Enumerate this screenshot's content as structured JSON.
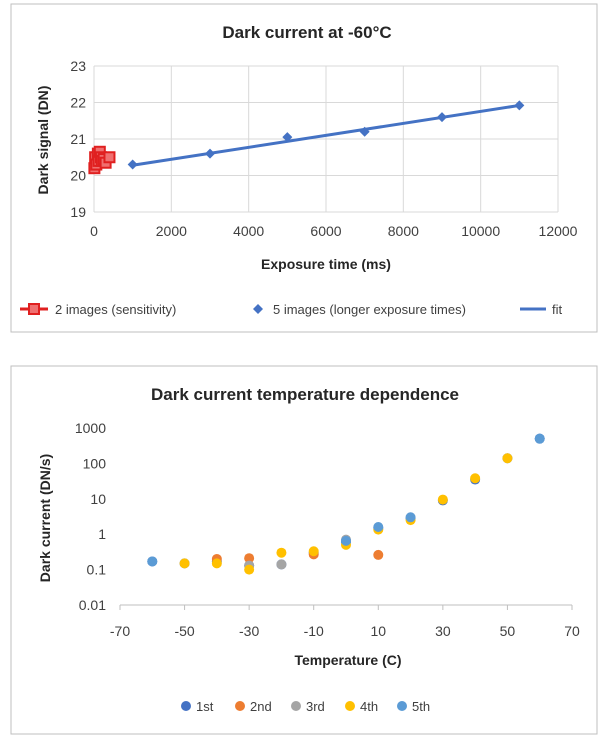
{
  "chart_data": [
    {
      "type": "scatter",
      "title": "Dark current at -60°C",
      "xlabel": "Exposure time (ms)",
      "ylabel": "Dark signal (DN)",
      "xlim": [
        0,
        12000
      ],
      "ylim": [
        19,
        23
      ],
      "x_ticks": [
        0,
        2000,
        4000,
        6000,
        8000,
        10000,
        12000
      ],
      "y_ticks": [
        19,
        20,
        21,
        22,
        23
      ],
      "grid": true,
      "legend_position": "bottom",
      "series": [
        {
          "name": "2 images (sensitivity)",
          "marker": "square",
          "color": "#e02020",
          "x": [
            10,
            30,
            60,
            100,
            120,
            150,
            180,
            200,
            250,
            300,
            400
          ],
          "y": [
            20.2,
            20.5,
            20.3,
            20.6,
            20.4,
            20.65,
            20.5,
            20.4,
            20.45,
            20.35,
            20.5
          ]
        },
        {
          "name": "5 images (longer exposure times)",
          "marker": "diamond",
          "color": "#4472c4",
          "x": [
            1000,
            3000,
            5000,
            7000,
            9000,
            11000
          ],
          "y": [
            20.3,
            20.6,
            21.05,
            21.2,
            21.6,
            21.92
          ]
        },
        {
          "name": "fit",
          "marker": "line",
          "color": "#4472c4",
          "x": [
            1000,
            11000
          ],
          "y": [
            20.28,
            21.92
          ]
        }
      ]
    },
    {
      "type": "scatter",
      "title": "Dark current temperature dependence",
      "xlabel": "Temperature (C)",
      "ylabel": "Dark current (DN/s)",
      "xlim": [
        -70,
        70
      ],
      "ylim": [
        0.01,
        1000
      ],
      "y_scale": "log",
      "x_ticks": [
        -70,
        -50,
        -30,
        -10,
        10,
        30,
        50,
        70
      ],
      "y_ticks": [
        "0.01",
        "0.1",
        "1",
        "10",
        "100",
        "1000"
      ],
      "grid": false,
      "legend_position": "bottom",
      "series": [
        {
          "name": "1st",
          "color": "#4472c4",
          "x": [
            -60,
            -50,
            -40,
            -30,
            -20,
            -10,
            0,
            10,
            20,
            30,
            40,
            50,
            60
          ],
          "y": [
            0.17,
            0.15,
            0.17,
            0.13,
            0.14,
            0.3,
            0.6,
            1.5,
            2.8,
            9,
            35,
            140,
            500
          ]
        },
        {
          "name": "2nd",
          "color": "#ed7d31",
          "x": [
            -40,
            -30,
            -10,
            10
          ],
          "y": [
            0.2,
            0.21,
            0.27,
            0.26
          ]
        },
        {
          "name": "3rd",
          "color": "#a5a5a5",
          "x": [
            -30,
            -20,
            0
          ],
          "y": [
            0.13,
            0.14,
            0.7
          ]
        },
        {
          "name": "4th",
          "color": "#ffc000",
          "x": [
            -50,
            -40,
            -30,
            -20,
            -10,
            0,
            10,
            20,
            30,
            40,
            50
          ],
          "y": [
            0.15,
            0.15,
            0.1,
            0.3,
            0.33,
            0.5,
            1.35,
            2.5,
            9.5,
            38,
            140
          ]
        },
        {
          "name": "5th",
          "color": "#5b9bd5",
          "x": [
            -60,
            0,
            10,
            20,
            60
          ],
          "y": [
            0.17,
            0.65,
            1.6,
            3.0,
            500
          ]
        }
      ]
    }
  ]
}
